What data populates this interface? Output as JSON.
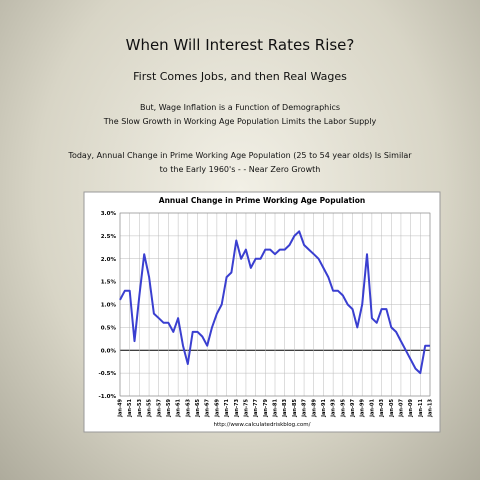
{
  "slide": {
    "title": "When Will Interest Rates Rise?",
    "subtitle": "First Comes Jobs, and then Real Wages",
    "lines": [
      "But, Wage Inflation is a Function of Demographics",
      "The Slow Growth in Working Age Population Limits the Labor Supply"
    ],
    "note": [
      "Today, Annual Change in Prime Working Age Population (25 to 54 year olds) Is Similar",
      "to the Early 1960's - - Near Zero Growth"
    ]
  },
  "chart_data": {
    "type": "line",
    "title": "Annual Change in Prime Working Age Population",
    "source": "http://www.calculatedriskblog.com/",
    "color": "#3a3fd0",
    "grid": true,
    "categories": [
      "Jan-49",
      null,
      "Jan-51",
      null,
      "Jan-53",
      null,
      "Jan-55",
      null,
      "Jan-57",
      null,
      "Jan-59",
      null,
      "Jan-61",
      null,
      "Jan-63",
      null,
      "Jan-65",
      null,
      "Jan-67",
      null,
      "Jan-69",
      null,
      "Jan-71",
      null,
      "Jan-73",
      null,
      "Jan-75",
      null,
      "Jan-77",
      null,
      "Jan-79",
      null,
      "Jan-81",
      null,
      "Jan-83",
      null,
      "Jan-85",
      null,
      "Jan-87",
      null,
      "Jan-89",
      null,
      "Jan-91",
      null,
      "Jan-93",
      null,
      "Jan-95",
      null,
      "Jan-97",
      null,
      "Jan-99",
      null,
      "Jan-01",
      null,
      "Jan-03",
      null,
      "Jan-05",
      null,
      "Jan-07",
      null,
      "Jan-09",
      null,
      "Jan-11",
      null,
      "Jan-13"
    ],
    "values": [
      1.1,
      1.3,
      1.3,
      0.2,
      1.2,
      2.1,
      1.6,
      0.8,
      0.7,
      0.6,
      0.6,
      0.4,
      0.7,
      0.1,
      -0.3,
      0.4,
      0.4,
      0.3,
      0.1,
      0.5,
      0.8,
      1.0,
      1.6,
      1.7,
      2.4,
      2.0,
      2.2,
      1.8,
      2.0,
      2.0,
      2.2,
      2.2,
      2.1,
      2.2,
      2.2,
      2.3,
      2.5,
      2.6,
      2.3,
      2.2,
      2.1,
      2.0,
      1.8,
      1.6,
      1.3,
      1.3,
      1.2,
      1.0,
      0.9,
      0.5,
      1.0,
      2.1,
      0.7,
      0.6,
      0.9,
      0.9,
      0.5,
      0.4,
      0.2,
      0.0,
      -0.2,
      -0.4,
      -0.5,
      0.1,
      0.1
    ],
    "ylim": [
      -1,
      3
    ],
    "yticks": [
      {
        "value": -1,
        "label": "-1.0%"
      },
      {
        "value": -0.5,
        "label": "-0.5%"
      },
      {
        "value": 0,
        "label": "0.0%"
      },
      {
        "value": 0.5,
        "label": "0.5%"
      },
      {
        "value": 1,
        "label": "1.0%"
      },
      {
        "value": 1.5,
        "label": "1.5%"
      },
      {
        "value": 2,
        "label": "2.0%"
      },
      {
        "value": 2.5,
        "label": "2.5%"
      },
      {
        "value": 3,
        "label": "3.0%"
      }
    ]
  }
}
